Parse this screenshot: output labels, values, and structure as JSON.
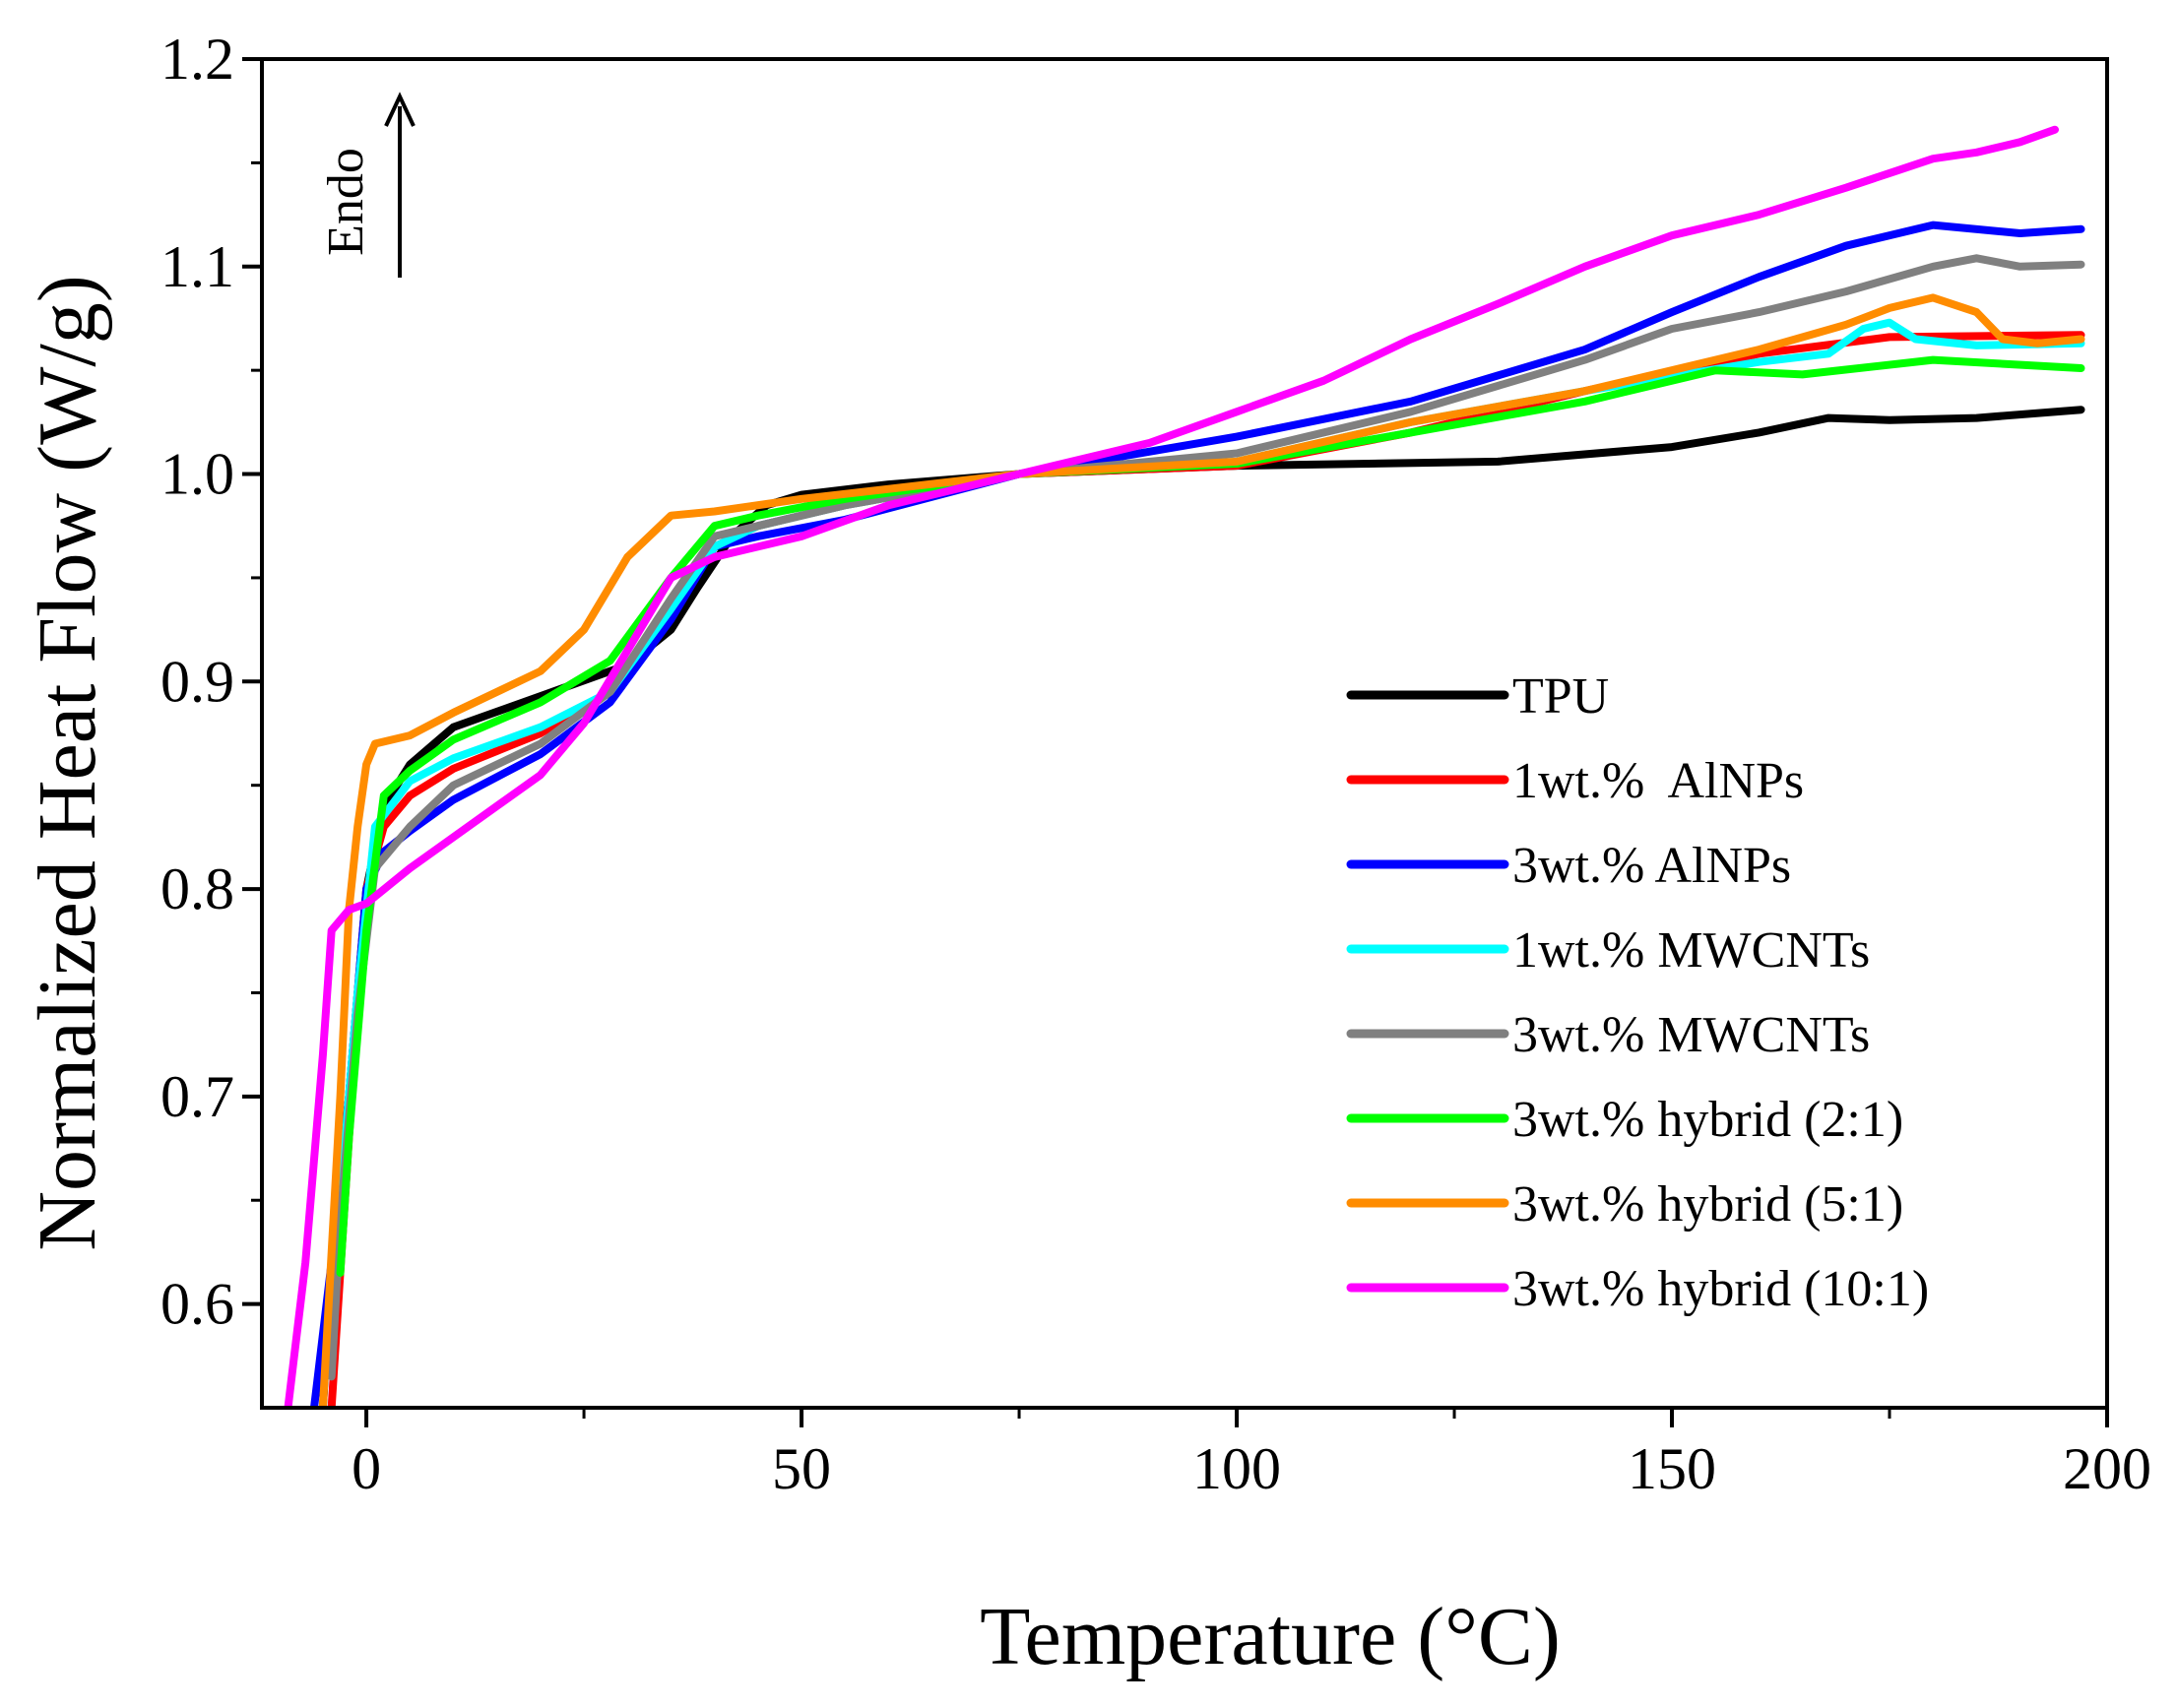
{
  "chart_data": {
    "type": "line",
    "title": "",
    "xlabel": "Temperature (°C)",
    "ylabel": "Normalized Heat Flow (W/g)",
    "xlim": [
      -12,
      200
    ],
    "ylim": [
      0.55,
      1.2
    ],
    "x_ticks": [
      0,
      50,
      100,
      150,
      200
    ],
    "x_tick_labels": [
      "0",
      "50",
      "100",
      "150",
      "200"
    ],
    "y_ticks": [
      0.6,
      0.7,
      0.8,
      0.9,
      1.0,
      1.1,
      1.2
    ],
    "y_tick_labels": [
      "0.6",
      "0.7",
      "0.8",
      "0.9",
      "1.0",
      "1.1",
      "1.2"
    ],
    "grid": false,
    "legend_position": "bottom-right",
    "annotation": {
      "text": "Endo",
      "arrow": "up"
    },
    "series": [
      {
        "name": "TPU",
        "color": "#000000",
        "points": [
          [
            -5,
            0.55
          ],
          [
            -4,
            0.62
          ],
          [
            -2,
            0.7
          ],
          [
            0,
            0.8
          ],
          [
            2,
            0.84
          ],
          [
            5,
            0.86
          ],
          [
            10,
            0.878
          ],
          [
            20,
            0.893
          ],
          [
            30,
            0.908
          ],
          [
            35,
            0.925
          ],
          [
            38,
            0.945
          ],
          [
            42,
            0.97
          ],
          [
            46,
            0.985
          ],
          [
            50,
            0.99
          ],
          [
            60,
            0.995
          ],
          [
            75,
            1.0
          ],
          [
            100,
            1.004
          ],
          [
            130,
            1.006
          ],
          [
            150,
            1.013
          ],
          [
            160,
            1.02
          ],
          [
            168,
            1.027
          ],
          [
            175,
            1.026
          ],
          [
            185,
            1.027
          ],
          [
            197,
            1.031
          ]
        ]
      },
      {
        "name": "1wt.%  AlNPs",
        "color": "#ff0000",
        "points": [
          [
            -4,
            0.55
          ],
          [
            -2,
            0.68
          ],
          [
            0,
            0.8
          ],
          [
            2,
            0.83
          ],
          [
            5,
            0.845
          ],
          [
            10,
            0.858
          ],
          [
            20,
            0.875
          ],
          [
            28,
            0.895
          ],
          [
            35,
            0.935
          ],
          [
            40,
            0.965
          ],
          [
            45,
            0.975
          ],
          [
            55,
            0.985
          ],
          [
            75,
            1.0
          ],
          [
            100,
            1.004
          ],
          [
            120,
            1.02
          ],
          [
            140,
            1.04
          ],
          [
            160,
            1.058
          ],
          [
            175,
            1.066
          ],
          [
            197,
            1.067
          ]
        ]
      },
      {
        "name": "3wt.% AlNPs",
        "color": "#0000ff",
        "points": [
          [
            -6,
            0.55
          ],
          [
            -4,
            0.62
          ],
          [
            -2,
            0.7
          ],
          [
            0,
            0.8
          ],
          [
            2,
            0.818
          ],
          [
            5,
            0.828
          ],
          [
            10,
            0.843
          ],
          [
            20,
            0.865
          ],
          [
            28,
            0.89
          ],
          [
            35,
            0.93
          ],
          [
            40,
            0.965
          ],
          [
            45,
            0.97
          ],
          [
            55,
            0.978
          ],
          [
            75,
            1.0
          ],
          [
            100,
            1.018
          ],
          [
            120,
            1.035
          ],
          [
            140,
            1.06
          ],
          [
            150,
            1.078
          ],
          [
            160,
            1.095
          ],
          [
            170,
            1.11
          ],
          [
            180,
            1.12
          ],
          [
            190,
            1.116
          ],
          [
            197,
            1.118
          ]
        ]
      },
      {
        "name": "1wt.% MWCNTs",
        "color": "#00ffff",
        "points": [
          [
            -4,
            0.585
          ],
          [
            -3,
            0.65
          ],
          [
            -1,
            0.75
          ],
          [
            1,
            0.83
          ],
          [
            5,
            0.852
          ],
          [
            10,
            0.863
          ],
          [
            20,
            0.878
          ],
          [
            28,
            0.895
          ],
          [
            35,
            0.935
          ],
          [
            40,
            0.965
          ],
          [
            45,
            0.975
          ],
          [
            55,
            0.985
          ],
          [
            75,
            1.0
          ],
          [
            100,
            1.006
          ],
          [
            120,
            1.025
          ],
          [
            140,
            1.04
          ],
          [
            160,
            1.054
          ],
          [
            168,
            1.058
          ],
          [
            172,
            1.07
          ],
          [
            175,
            1.073
          ],
          [
            178,
            1.065
          ],
          [
            185,
            1.062
          ],
          [
            197,
            1.063
          ]
        ]
      },
      {
        "name": "3wt.% MWCNTs",
        "color": "#808080",
        "points": [
          [
            -4,
            0.565
          ],
          [
            -3,
            0.64
          ],
          [
            -1,
            0.74
          ],
          [
            1,
            0.81
          ],
          [
            5,
            0.83
          ],
          [
            10,
            0.85
          ],
          [
            20,
            0.87
          ],
          [
            28,
            0.895
          ],
          [
            35,
            0.94
          ],
          [
            40,
            0.97
          ],
          [
            45,
            0.975
          ],
          [
            55,
            0.985
          ],
          [
            75,
            1.0
          ],
          [
            100,
            1.01
          ],
          [
            120,
            1.03
          ],
          [
            140,
            1.055
          ],
          [
            150,
            1.07
          ],
          [
            160,
            1.078
          ],
          [
            170,
            1.088
          ],
          [
            180,
            1.1
          ],
          [
            185,
            1.104
          ],
          [
            190,
            1.1
          ],
          [
            197,
            1.101
          ]
        ]
      },
      {
        "name": "3wt.% hybrid (2:1)",
        "color": "#00ff00",
        "points": [
          [
            -3,
            0.615
          ],
          [
            -2,
            0.68
          ],
          [
            0,
            0.78
          ],
          [
            2,
            0.845
          ],
          [
            5,
            0.857
          ],
          [
            10,
            0.872
          ],
          [
            20,
            0.89
          ],
          [
            28,
            0.91
          ],
          [
            35,
            0.95
          ],
          [
            40,
            0.975
          ],
          [
            45,
            0.98
          ],
          [
            55,
            0.988
          ],
          [
            75,
            1.0
          ],
          [
            100,
            1.005
          ],
          [
            120,
            1.02
          ],
          [
            140,
            1.035
          ],
          [
            155,
            1.05
          ],
          [
            165,
            1.048
          ],
          [
            180,
            1.055
          ],
          [
            197,
            1.051
          ]
        ]
      },
      {
        "name": "3wt.% hybrid (5:1)",
        "color": "#ff8c00",
        "points": [
          [
            -5,
            0.55
          ],
          [
            -3,
            0.7
          ],
          [
            -2,
            0.79
          ],
          [
            -1,
            0.83
          ],
          [
            0,
            0.86
          ],
          [
            1,
            0.87
          ],
          [
            5,
            0.874
          ],
          [
            10,
            0.885
          ],
          [
            20,
            0.905
          ],
          [
            25,
            0.925
          ],
          [
            30,
            0.96
          ],
          [
            35,
            0.98
          ],
          [
            40,
            0.982
          ],
          [
            50,
            0.988
          ],
          [
            75,
            1.0
          ],
          [
            100,
            1.006
          ],
          [
            120,
            1.025
          ],
          [
            140,
            1.04
          ],
          [
            160,
            1.06
          ],
          [
            170,
            1.072
          ],
          [
            175,
            1.08
          ],
          [
            180,
            1.085
          ],
          [
            185,
            1.078
          ],
          [
            188,
            1.065
          ],
          [
            192,
            1.063
          ],
          [
            197,
            1.065
          ]
        ]
      },
      {
        "name": "3wt.% hybrid (10:1)",
        "color": "#ff00ff",
        "points": [
          [
            -9,
            0.55
          ],
          [
            -7,
            0.62
          ],
          [
            -5,
            0.72
          ],
          [
            -4,
            0.78
          ],
          [
            -2,
            0.79
          ],
          [
            0,
            0.793
          ],
          [
            5,
            0.81
          ],
          [
            10,
            0.825
          ],
          [
            20,
            0.855
          ],
          [
            25,
            0.88
          ],
          [
            30,
            0.915
          ],
          [
            35,
            0.95
          ],
          [
            40,
            0.96
          ],
          [
            50,
            0.97
          ],
          [
            60,
            0.985
          ],
          [
            75,
            1.0
          ],
          [
            90,
            1.015
          ],
          [
            100,
            1.03
          ],
          [
            110,
            1.045
          ],
          [
            120,
            1.065
          ],
          [
            130,
            1.082
          ],
          [
            140,
            1.1
          ],
          [
            150,
            1.115
          ],
          [
            160,
            1.125
          ],
          [
            170,
            1.138
          ],
          [
            175,
            1.145
          ],
          [
            180,
            1.152
          ],
          [
            185,
            1.155
          ],
          [
            190,
            1.16
          ],
          [
            194,
            1.166
          ]
        ]
      }
    ]
  }
}
